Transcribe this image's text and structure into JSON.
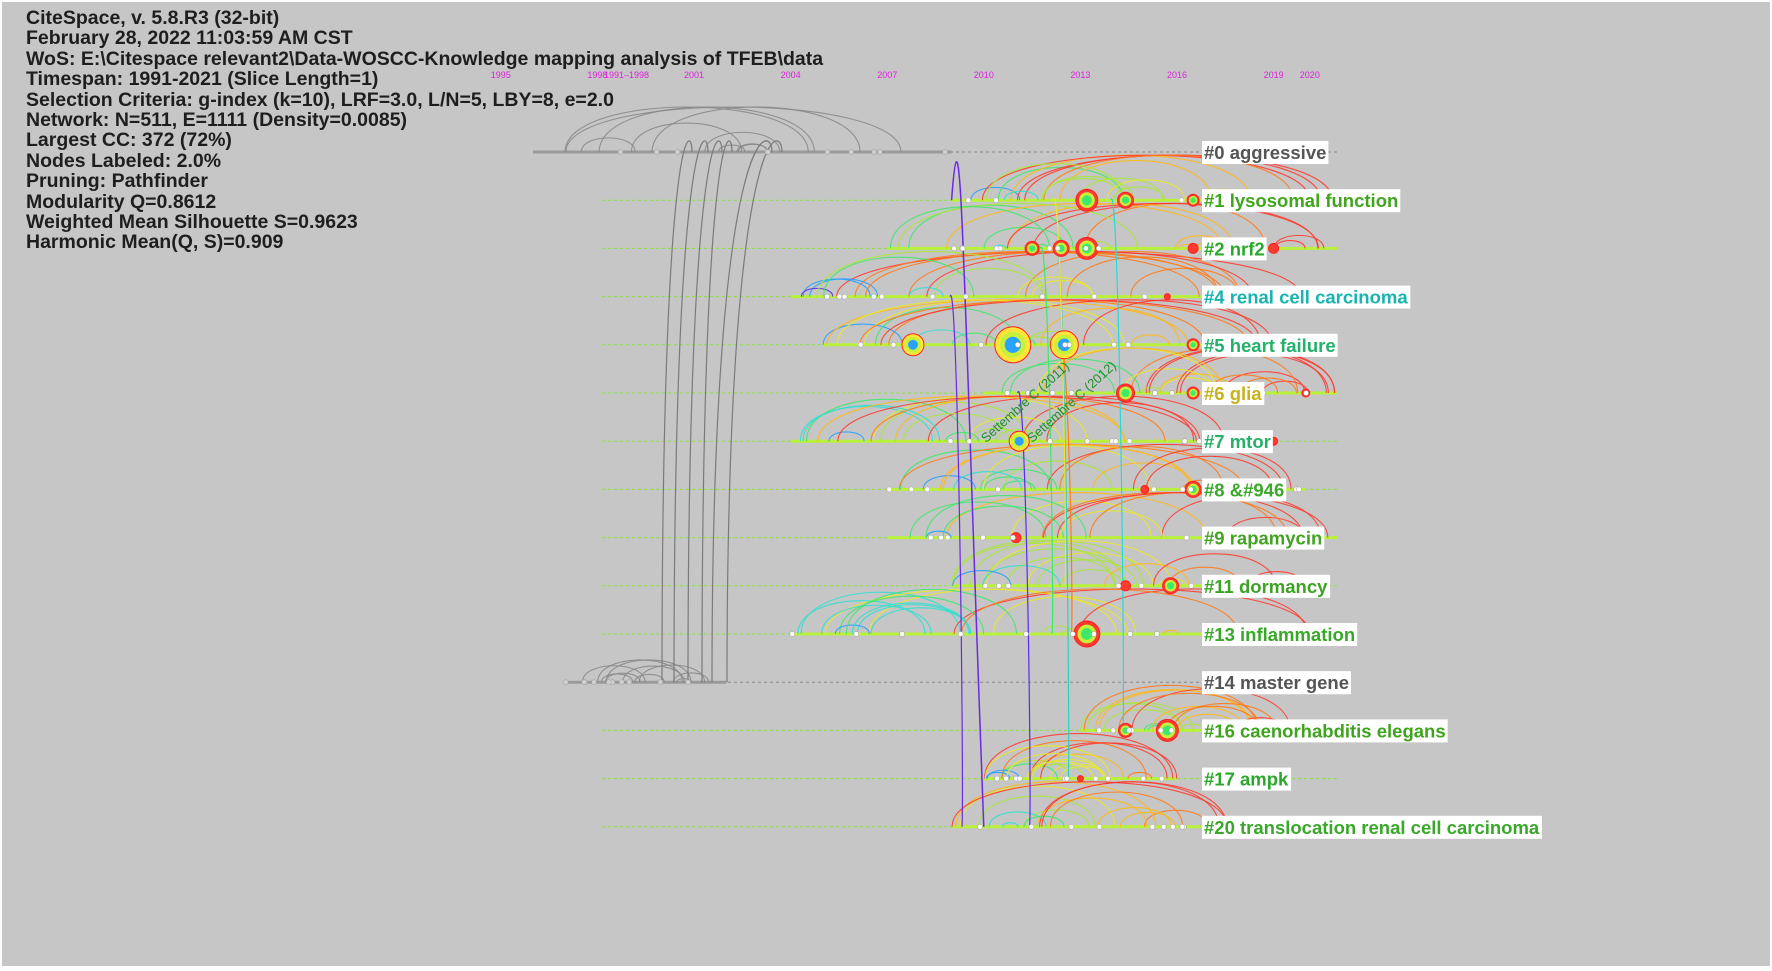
{
  "window": {
    "title": "CiteSpace, v. 5.8.R3 (32-bit)",
    "date": "February 28, 2022 11:03:59 AM CST"
  },
  "info_lines": [
    "WoS: E:\\Citespace relevant2\\Data-WOSCC-Knowledge mapping analysis of TFEB\\data",
    "Timespan: 1991-2021 (Slice Length=1)",
    "Selection Criteria: g-index (k=10), LRF=3.0, L/N=5, LBY=8, e=2.0",
    "Network: N=511, E=1111 (Density=0.0085)",
    "Largest CC: 372 (72%)",
    "Nodes Labeled: 2.0%",
    "Pruning: Pathfinder",
    "Modularity Q=0.8612",
    "Weighted Mean Silhouette S=0.9623",
    "Harmonic Mean(Q, S)=0.909"
  ],
  "timeline": {
    "crowded_years_label": "1991–1998",
    "years": [
      {
        "label": "1995",
        "year": 1995
      },
      {
        "label": "1998",
        "year": 1998
      },
      {
        "label": "2001",
        "year": 2001
      },
      {
        "label": "2004",
        "year": 2004
      },
      {
        "label": "2007",
        "year": 2007
      },
      {
        "label": "2010",
        "year": 2010
      },
      {
        "label": "2013",
        "year": 2013
      },
      {
        "label": "2016",
        "year": 2016
      },
      {
        "label": "2019",
        "year": 2019
      },
      {
        "label": "2020",
        "year": 2020
      }
    ]
  },
  "clusters": [
    {
      "id": "#0",
      "label": "#0 aggressive",
      "color": "#555555",
      "start": 1996,
      "end": 2009
    },
    {
      "id": "#1",
      "label": "#1 lysosomal function",
      "color": "#3fa51c",
      "start": 2009,
      "end": 2021
    },
    {
      "id": "#2",
      "label": "#2 nrf2",
      "color": "#2aa82a",
      "start": 2007,
      "end": 2021
    },
    {
      "id": "#4",
      "label": "#4 renal cell carcinoma",
      "color": "#19b3b0",
      "start": 2004,
      "end": 2020
    },
    {
      "id": "#5",
      "label": "#5 heart failure",
      "color": "#22b06a",
      "start": 2005,
      "end": 2020
    },
    {
      "id": "#6",
      "label": "#6 glia",
      "color": "#c8b21c",
      "start": 2010,
      "end": 2021
    },
    {
      "id": "#7",
      "label": "#7 mtor",
      "color": "#26b06a",
      "start": 2004,
      "end": 2018
    },
    {
      "id": "#8",
      "label": "#8 &#946",
      "color": "#3aa82a",
      "start": 2007,
      "end": 2020
    },
    {
      "id": "#9",
      "label": "#9 rapamycin",
      "color": "#43a323",
      "start": 2007,
      "end": 2021
    },
    {
      "id": "#11",
      "label": "#11 dormancy",
      "color": "#3da325",
      "start": 2009,
      "end": 2020
    },
    {
      "id": "#13",
      "label": "#13 inflammation",
      "color": "#38a828",
      "start": 2004,
      "end": 2021
    },
    {
      "id": "#14",
      "label": "#14 master gene",
      "color": "#555555",
      "start": 1997,
      "end": 2002
    },
    {
      "id": "#16",
      "label": "#16 caenorhabditis elegans",
      "color": "#3fa31e",
      "start": 2013,
      "end": 2020
    },
    {
      "id": "#17",
      "label": "#17 ampk",
      "color": "#2aa82a",
      "start": 2010,
      "end": 2016
    },
    {
      "id": "#20",
      "label": "#20 translocation renal cell carcinoma",
      "color": "#3aa82a",
      "start": 2009,
      "end": 2018
    }
  ],
  "annotations": [
    {
      "text": "Settembre C (2011)",
      "cluster": "#5",
      "year": 2011
    },
    {
      "text": "Settembre C (2012)",
      "cluster": "#5",
      "year": 2012
    }
  ],
  "colors": {
    "background": "#c6c6c6",
    "year_label": "#e020e0",
    "info_text": "#1e1e1e"
  }
}
